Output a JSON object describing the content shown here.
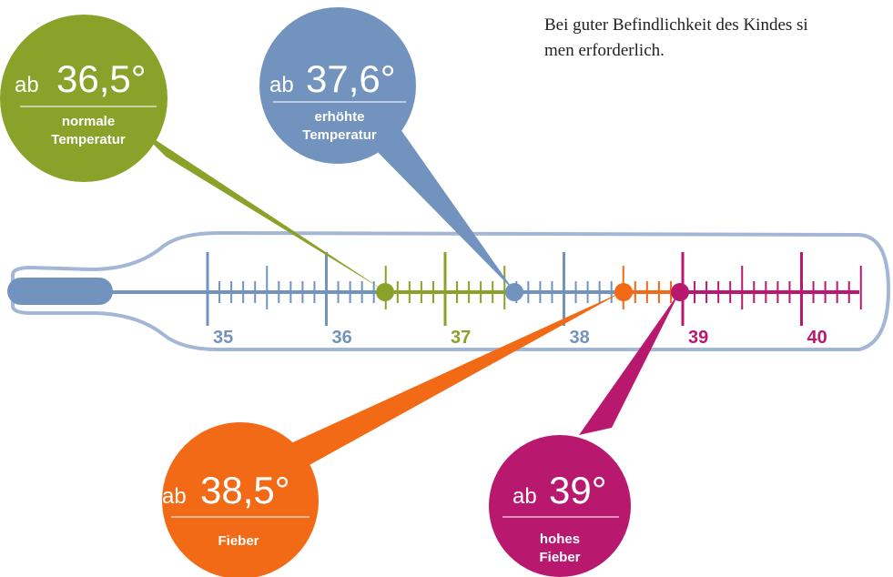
{
  "text": {
    "line1": "Bei guter Befindlichkeit des Kindes si",
    "line2": "men erforderlich."
  },
  "scale": {
    "labels": [
      {
        "value": "35",
        "color": "#7393bf"
      },
      {
        "value": "36",
        "color": "#7393bf"
      },
      {
        "value": "37",
        "color": "#8aa22a"
      },
      {
        "value": "38",
        "color": "#7393bf"
      },
      {
        "value": "39",
        "color": "#b8196f"
      },
      {
        "value": "40",
        "color": "#b8196f"
      }
    ]
  },
  "bubbles": [
    {
      "key": "normal",
      "color": "#8aa22a",
      "prefix": "ab",
      "value": "36,5°",
      "line1": "normale",
      "line2": "Temperatur"
    },
    {
      "key": "elevated",
      "color": "#7393bf",
      "prefix": "ab",
      "value": "37,6°",
      "line1": "erhöhte",
      "line2": "Temperatur"
    },
    {
      "key": "fever",
      "color": "#f26a16",
      "prefix": "ab",
      "value": "38,5°",
      "line1": "Fieber",
      "line2": ""
    },
    {
      "key": "high-fever",
      "color": "#b8196f",
      "prefix": "ab",
      "value": "39°",
      "line1": "hohes",
      "line2": "Fieber"
    }
  ],
  "colors": {
    "outline": "#7393bf",
    "bulb": "#7393bf",
    "green": "#8aa22a",
    "blue": "#7393bf",
    "orange": "#f26a16",
    "magenta": "#b8196f"
  }
}
